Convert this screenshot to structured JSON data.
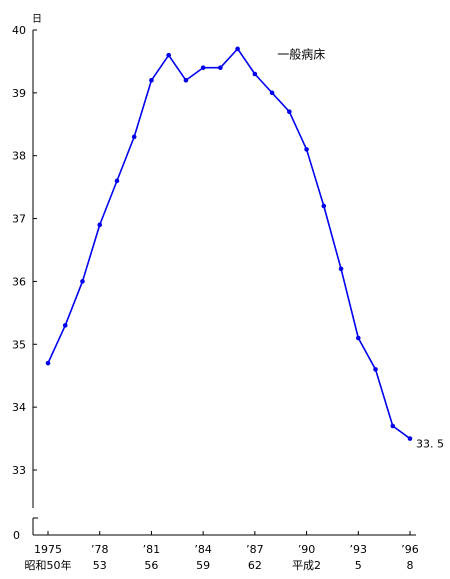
{
  "chart_data": {
    "type": "line",
    "title": "",
    "xlabel": "",
    "ylabel": "",
    "y_unit": "日",
    "ylim": [
      33,
      40
    ],
    "y_ticks": [
      40,
      39,
      38,
      37,
      36,
      35,
      34,
      33
    ],
    "y_zero_label": "0",
    "y_axis_break": true,
    "x_range": [
      1975,
      1996
    ],
    "x_ticks": [
      {
        "x": 1975,
        "top": "1975",
        "bottom": "昭和50年"
      },
      {
        "x": 1978,
        "top": "’78",
        "bottom": "53"
      },
      {
        "x": 1981,
        "top": "’81",
        "bottom": "56"
      },
      {
        "x": 1984,
        "top": "’84",
        "bottom": "59"
      },
      {
        "x": 1987,
        "top": "’87",
        "bottom": "62"
      },
      {
        "x": 1990,
        "top": "’90",
        "bottom": "平成2"
      },
      {
        "x": 1993,
        "top": "’93",
        "bottom": "5"
      },
      {
        "x": 1996,
        "top": "’96",
        "bottom": "8"
      }
    ],
    "grid": false,
    "series": [
      {
        "name": "一般病床",
        "color": "#0000ee",
        "x": [
          1975,
          1976,
          1977,
          1978,
          1979,
          1980,
          1981,
          1982,
          1983,
          1984,
          1985,
          1986,
          1987,
          1988,
          1989,
          1990,
          1991,
          1992,
          1993,
          1994,
          1995,
          1996
        ],
        "values": [
          34.7,
          35.3,
          36.0,
          36.9,
          37.6,
          38.3,
          39.2,
          39.6,
          39.2,
          39.4,
          39.4,
          39.7,
          39.3,
          39.0,
          38.7,
          38.1,
          37.2,
          36.2,
          35.1,
          34.6,
          33.7,
          33.5
        ]
      }
    ],
    "end_label": "33. 5"
  }
}
